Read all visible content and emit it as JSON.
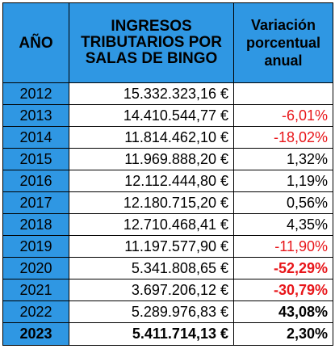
{
  "table": {
    "headers": {
      "year": "AÑO",
      "income": "INGRESOS TRIBUTARIOS POR SALAS DE BINGO",
      "variation": "Variación porcentual anual"
    },
    "rows": [
      {
        "year": "2012",
        "income": "15.332.323,16 €",
        "variation": ""
      },
      {
        "year": "2013",
        "income": "14.410.544,77 €",
        "variation": "-6,01%"
      },
      {
        "year": "2014",
        "income": "11.814.462,10 €",
        "variation": "-18,02%"
      },
      {
        "year": "2015",
        "income": "11.969.888,20 €",
        "variation": "1,32%"
      },
      {
        "year": "2016",
        "income": "12.112.444,80 €",
        "variation": "1,19%"
      },
      {
        "year": "2017",
        "income": "12.180.715,20 €",
        "variation": "0,56%"
      },
      {
        "year": "2018",
        "income": "12.710.468,41 €",
        "variation": "4,35%"
      },
      {
        "year": "2019",
        "income": "11.197.577,90 €",
        "variation": "-11,90%"
      },
      {
        "year": "2020",
        "income": "5.341.808,65 €",
        "variation": "-52,29%"
      },
      {
        "year": "2021",
        "income": "3.697.206,12 €",
        "variation": "-30,79%"
      },
      {
        "year": "2022",
        "income": "5.289.976,83 €",
        "variation": "43,08%"
      },
      {
        "year": "2023",
        "income": "5.411.714,13 €",
        "variation": "2,30%"
      }
    ]
  },
  "colors": {
    "header_bg": "#2f97e3",
    "negative_text": "#e8161a",
    "border": "#000000"
  }
}
